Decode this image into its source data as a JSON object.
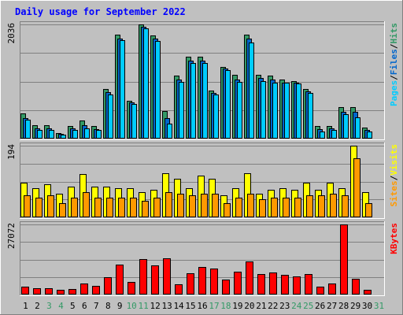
{
  "chart_data": {
    "title": "Daily usage for September 2022",
    "type": "bar",
    "days": [
      "1",
      "2",
      "3",
      "4",
      "5",
      "6",
      "7",
      "8",
      "9",
      "10",
      "11",
      "12",
      "13",
      "14",
      "15",
      "16",
      "17",
      "18",
      "19",
      "20",
      "21",
      "22",
      "23",
      "24",
      "25",
      "26",
      "27",
      "28",
      "29",
      "30",
      "31"
    ],
    "weekend_days": [
      "3",
      "4",
      "10",
      "11",
      "17",
      "18",
      "24",
      "25",
      "31"
    ],
    "panels": [
      {
        "name": "hits-files-pages",
        "ymax_label": "2036",
        "ymax": 2036,
        "legend": [
          "Pages",
          "Files",
          "Hits"
        ],
        "series": [
          {
            "name": "Hits",
            "color": "#339966",
            "values": [
              450,
              240,
              240,
              100,
              230,
              320,
              220,
              880,
              1850,
              680,
              2036,
              1840,
              490,
              1120,
              1460,
              1460,
              850,
              1280,
              1140,
              1850,
              1140,
              1120,
              1060,
              1020,
              880,
              220,
              220,
              560,
              560,
              190,
              0
            ]
          },
          {
            "name": "Files",
            "color": "#0066cc",
            "values": [
              360,
              180,
              180,
              85,
              180,
              240,
              170,
              830,
              1780,
              650,
              1990,
              1780,
              360,
              1060,
              1390,
              1390,
              820,
              1250,
              1060,
              1780,
              1080,
              1060,
              1000,
              1000,
              840,
              170,
              180,
              480,
              480,
              150,
              0
            ]
          },
          {
            "name": "Pages",
            "color": "#00ccff",
            "values": [
              330,
              160,
              160,
              75,
              160,
              180,
              150,
              780,
              1760,
              620,
              1960,
              1740,
              270,
              1010,
              1350,
              1350,
              780,
              1220,
              1010,
              1720,
              1020,
              1000,
              990,
              980,
              810,
              130,
              160,
              430,
              380,
              130,
              0
            ]
          }
        ]
      },
      {
        "name": "visits-sites",
        "ymax_label": "194",
        "ymax": 194,
        "legend": [
          "Sites",
          "Visits"
        ],
        "series": [
          {
            "name": "Visits",
            "color": "#ffff00",
            "values": [
              94,
              79,
              89,
              64,
              84,
              117,
              84,
              84,
              79,
              79,
              69,
              74,
              119,
              104,
              79,
              114,
              104,
              59,
              79,
              119,
              64,
              74,
              79,
              74,
              94,
              74,
              94,
              79,
              194,
              69,
              0
            ]
          },
          {
            "name": "Sites",
            "color": "#ff9900",
            "values": [
              59,
              54,
              59,
              39,
              54,
              69,
              54,
              54,
              54,
              54,
              44,
              54,
              69,
              64,
              59,
              64,
              64,
              39,
              54,
              64,
              49,
              54,
              54,
              54,
              59,
              59,
              64,
              59,
              159,
              39,
              0
            ]
          }
        ]
      },
      {
        "name": "kbytes",
        "ymax_label": "27072",
        "ymax": 27072,
        "legend": [
          "KBytes"
        ],
        "series": [
          {
            "name": "KBytes",
            "color": "#ff0000",
            "values": [
              3000,
              2300,
              2300,
              1700,
              2000,
              4300,
              3200,
              6800,
              11700,
              4900,
              13700,
              11200,
              13900,
              3900,
              8300,
              10500,
              10100,
              5900,
              8700,
              12800,
              7800,
              8400,
              7500,
              7100,
              8000,
              3100,
              4400,
              27072,
              6000,
              1900,
              0
            ]
          }
        ]
      }
    ]
  },
  "colors": {
    "background": "#c0c0c0",
    "title": "#0000ff",
    "weekday_label": "#000000",
    "weekend_label": "#339966",
    "legend_separator": "#000000"
  }
}
